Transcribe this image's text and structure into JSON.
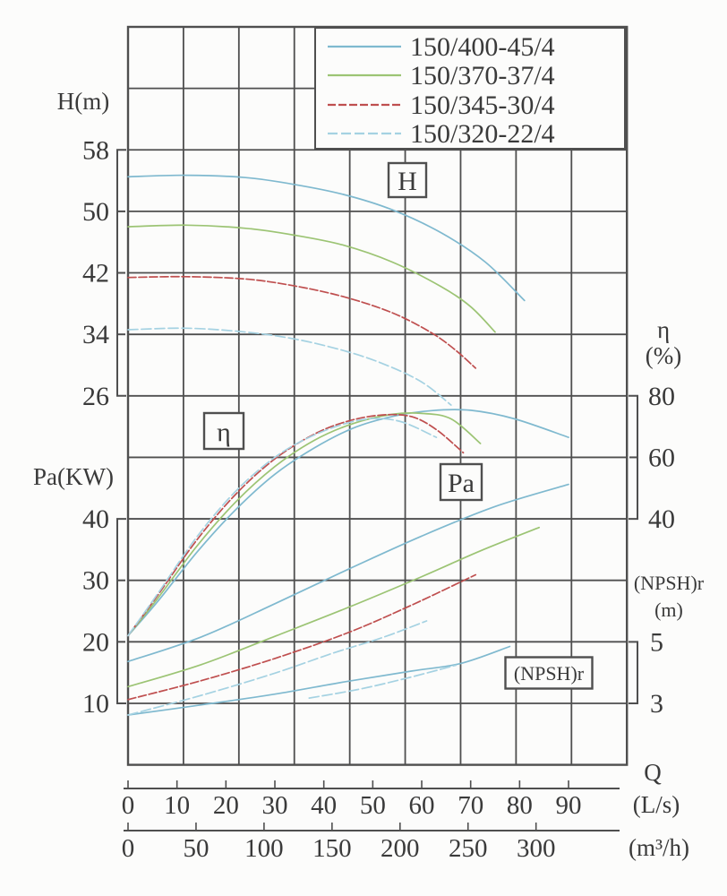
{
  "legend": {
    "entries": [
      {
        "label": "150/400-45/4",
        "color": "#7fb9cf",
        "dash": ""
      },
      {
        "label": "150/370-37/4",
        "color": "#9cc474",
        "dash": ""
      },
      {
        "label": "150/345-30/4",
        "color": "#bf4f4f",
        "dash": "9 3"
      },
      {
        "label": "150/320-22/4",
        "color": "#a5d2e2",
        "dash": "11 4"
      }
    ]
  },
  "chart_data": {
    "type": "line",
    "grid": {
      "columns": 9,
      "rows": 12
    },
    "x_axis": {
      "label": "Q",
      "primary_units": "(L/s)",
      "primary_ticks": [
        0,
        10,
        20,
        30,
        40,
        50,
        60,
        70,
        80,
        90
      ],
      "secondary_units": "(m³/h)",
      "secondary_ticks": [
        0,
        50,
        100,
        150,
        200,
        250,
        300
      ]
    },
    "y_axes": [
      {
        "id": "H",
        "label": "H(m)",
        "unit": "",
        "ticks": [
          58,
          50,
          42,
          34,
          26
        ],
        "side": "left"
      },
      {
        "id": "Pa",
        "label": "Pa(KW)",
        "unit": "",
        "ticks": [
          40,
          30,
          20,
          10
        ],
        "side": "left"
      },
      {
        "id": "eta",
        "label": "η",
        "unit": "(%)",
        "ticks": [
          80,
          60,
          40
        ],
        "side": "right"
      },
      {
        "id": "npsh",
        "label": "(NPSH)r",
        "unit": "(m)",
        "ticks": [
          5,
          3
        ],
        "side": "right"
      }
    ],
    "curve_labels": [
      "H",
      "η",
      "Pa",
      "(NPSH)r"
    ],
    "series": [
      {
        "name": "150/400-45/4",
        "color": "#7fb9cf",
        "dash": "",
        "H": [
          [
            0,
            54.5
          ],
          [
            12,
            54.7
          ],
          [
            24,
            54.4
          ],
          [
            34,
            53.5
          ],
          [
            44,
            52.2
          ],
          [
            54,
            50.2
          ],
          [
            64,
            47.2
          ],
          [
            73,
            43.4
          ],
          [
            81,
            38.4
          ]
        ],
        "eta": [
          [
            0,
            2
          ],
          [
            6,
            13
          ],
          [
            14,
            29
          ],
          [
            22,
            43
          ],
          [
            30,
            54.5
          ],
          [
            38,
            63
          ],
          [
            46,
            69.5
          ],
          [
            54,
            73.3
          ],
          [
            62,
            75.2
          ],
          [
            70,
            75.3
          ],
          [
            79,
            72.5
          ],
          [
            90,
            66.5
          ]
        ],
        "Pa": [
          [
            0,
            16.8
          ],
          [
            15,
            20.8
          ],
          [
            30,
            26.2
          ],
          [
            45,
            31.8
          ],
          [
            60,
            37.2
          ],
          [
            75,
            42
          ],
          [
            90,
            45.6
          ]
        ],
        "NPSHr": [
          [
            0,
            2.62
          ],
          [
            15,
            2.95
          ],
          [
            30,
            3.3
          ],
          [
            45,
            3.72
          ],
          [
            58,
            4.05
          ],
          [
            68,
            4.3
          ],
          [
            78,
            4.85
          ]
        ]
      },
      {
        "name": "150/370-37/4",
        "color": "#9cc474",
        "dash": "",
        "H": [
          [
            0,
            48.0
          ],
          [
            12,
            48.2
          ],
          [
            24,
            47.8
          ],
          [
            34,
            46.9
          ],
          [
            44,
            45.6
          ],
          [
            54,
            43.4
          ],
          [
            64,
            40.2
          ],
          [
            70,
            37.6
          ],
          [
            75,
            34.3
          ]
        ],
        "eta": [
          [
            0,
            2
          ],
          [
            6,
            14
          ],
          [
            14,
            31
          ],
          [
            22,
            45.5
          ],
          [
            30,
            57
          ],
          [
            38,
            65.5
          ],
          [
            46,
            71
          ],
          [
            54,
            74
          ],
          [
            60,
            74.3
          ],
          [
            66,
            72.5
          ],
          [
            72,
            64.5
          ]
        ],
        "Pa": [
          [
            0,
            12.7
          ],
          [
            15,
            16.3
          ],
          [
            30,
            20.9
          ],
          [
            45,
            25.6
          ],
          [
            60,
            30.6
          ],
          [
            72,
            34.8
          ],
          [
            84,
            38.6
          ]
        ],
        "NPSHr": []
      },
      {
        "name": "150/345-30/4",
        "color": "#bf4f4f",
        "dash": "9 3",
        "H": [
          [
            0,
            41.4
          ],
          [
            12,
            41.5
          ],
          [
            24,
            41.2
          ],
          [
            34,
            40.3
          ],
          [
            44,
            38.9
          ],
          [
            54,
            36.8
          ],
          [
            62,
            34.2
          ],
          [
            67,
            31.9
          ],
          [
            71,
            29.6
          ]
        ],
        "eta": [
          [
            0,
            2
          ],
          [
            6,
            15
          ],
          [
            14,
            33
          ],
          [
            22,
            48
          ],
          [
            30,
            59.5
          ],
          [
            38,
            67.5
          ],
          [
            45,
            71.8
          ],
          [
            52,
            73.8
          ],
          [
            58,
            73.2
          ],
          [
            63,
            69
          ],
          [
            68.5,
            61.5
          ]
        ],
        "Pa": [
          [
            0,
            10.6
          ],
          [
            15,
            13.7
          ],
          [
            30,
            17.3
          ],
          [
            45,
            21.5
          ],
          [
            58,
            26
          ],
          [
            71,
            30.9
          ]
        ],
        "NPSHr": []
      },
      {
        "name": "150/320-22/4",
        "color": "#a5d2e2",
        "dash": "11 4",
        "H": [
          [
            0,
            34.6
          ],
          [
            12,
            34.8
          ],
          [
            24,
            34.3
          ],
          [
            34,
            33.4
          ],
          [
            44,
            31.9
          ],
          [
            52,
            30.2
          ],
          [
            60,
            27.8
          ],
          [
            66,
            24.8
          ]
        ],
        "eta": [
          [
            0,
            2
          ],
          [
            6,
            15.5
          ],
          [
            14,
            34
          ],
          [
            22,
            49
          ],
          [
            30,
            60
          ],
          [
            37,
            66.5
          ],
          [
            44,
            70.8
          ],
          [
            50,
            72.6
          ],
          [
            56,
            71.5
          ],
          [
            63,
            66.5
          ]
        ],
        "Pa": [
          [
            0,
            8.1
          ],
          [
            15,
            11.3
          ],
          [
            30,
            14.9
          ],
          [
            42,
            18.2
          ],
          [
            52,
            20.7
          ],
          [
            61,
            23.4
          ]
        ],
        "NPSHr": [
          [
            37,
            3.17
          ],
          [
            47,
            3.45
          ],
          [
            57,
            3.82
          ],
          [
            67,
            4.24
          ]
        ]
      }
    ]
  }
}
